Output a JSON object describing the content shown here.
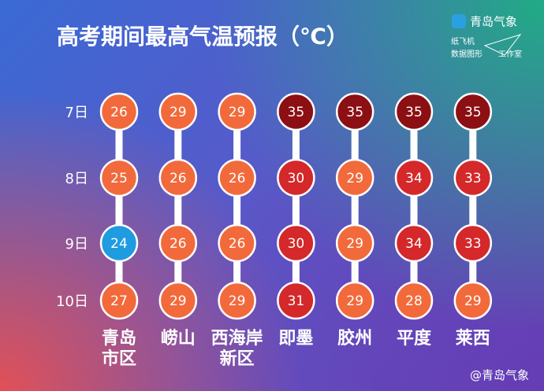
{
  "chart_data": {
    "type": "dot-matrix",
    "title": "高考期间最高气温预报（℃）",
    "categories": [
      "青岛\n市区",
      "崂山",
      "西海岸\n新区",
      "即墨",
      "胶州",
      "平度",
      "莱西"
    ],
    "series": [
      {
        "name": "7日",
        "values": [
          26,
          29,
          29,
          35,
          35,
          35,
          35
        ],
        "colors": [
          "#f26a3b",
          "#f26a3b",
          "#f26a3b",
          "#8c0f13",
          "#8c0f13",
          "#8c0f13",
          "#8c0f13"
        ]
      },
      {
        "name": "8日",
        "values": [
          25,
          26,
          26,
          30,
          29,
          34,
          33
        ],
        "colors": [
          "#f26a3b",
          "#f26a3b",
          "#f26a3b",
          "#d4282a",
          "#f26a3b",
          "#d4282a",
          "#d4282a"
        ]
      },
      {
        "name": "9日",
        "values": [
          24,
          26,
          26,
          30,
          29,
          34,
          33
        ],
        "colors": [
          "#1f9be0",
          "#f26a3b",
          "#f26a3b",
          "#d4282a",
          "#f26a3b",
          "#d4282a",
          "#d4282a"
        ]
      },
      {
        "name": "10日",
        "values": [
          27,
          29,
          29,
          31,
          29,
          28,
          29
        ],
        "colors": [
          "#f26a3b",
          "#f26a3b",
          "#f26a3b",
          "#d4282a",
          "#f26a3b",
          "#f26a3b",
          "#f26a3b"
        ]
      }
    ]
  },
  "logo": {
    "name": "青岛气象",
    "studio": [
      "纸飞机",
      "数据图形",
      "工作室"
    ]
  },
  "footer": "@青岛气象"
}
